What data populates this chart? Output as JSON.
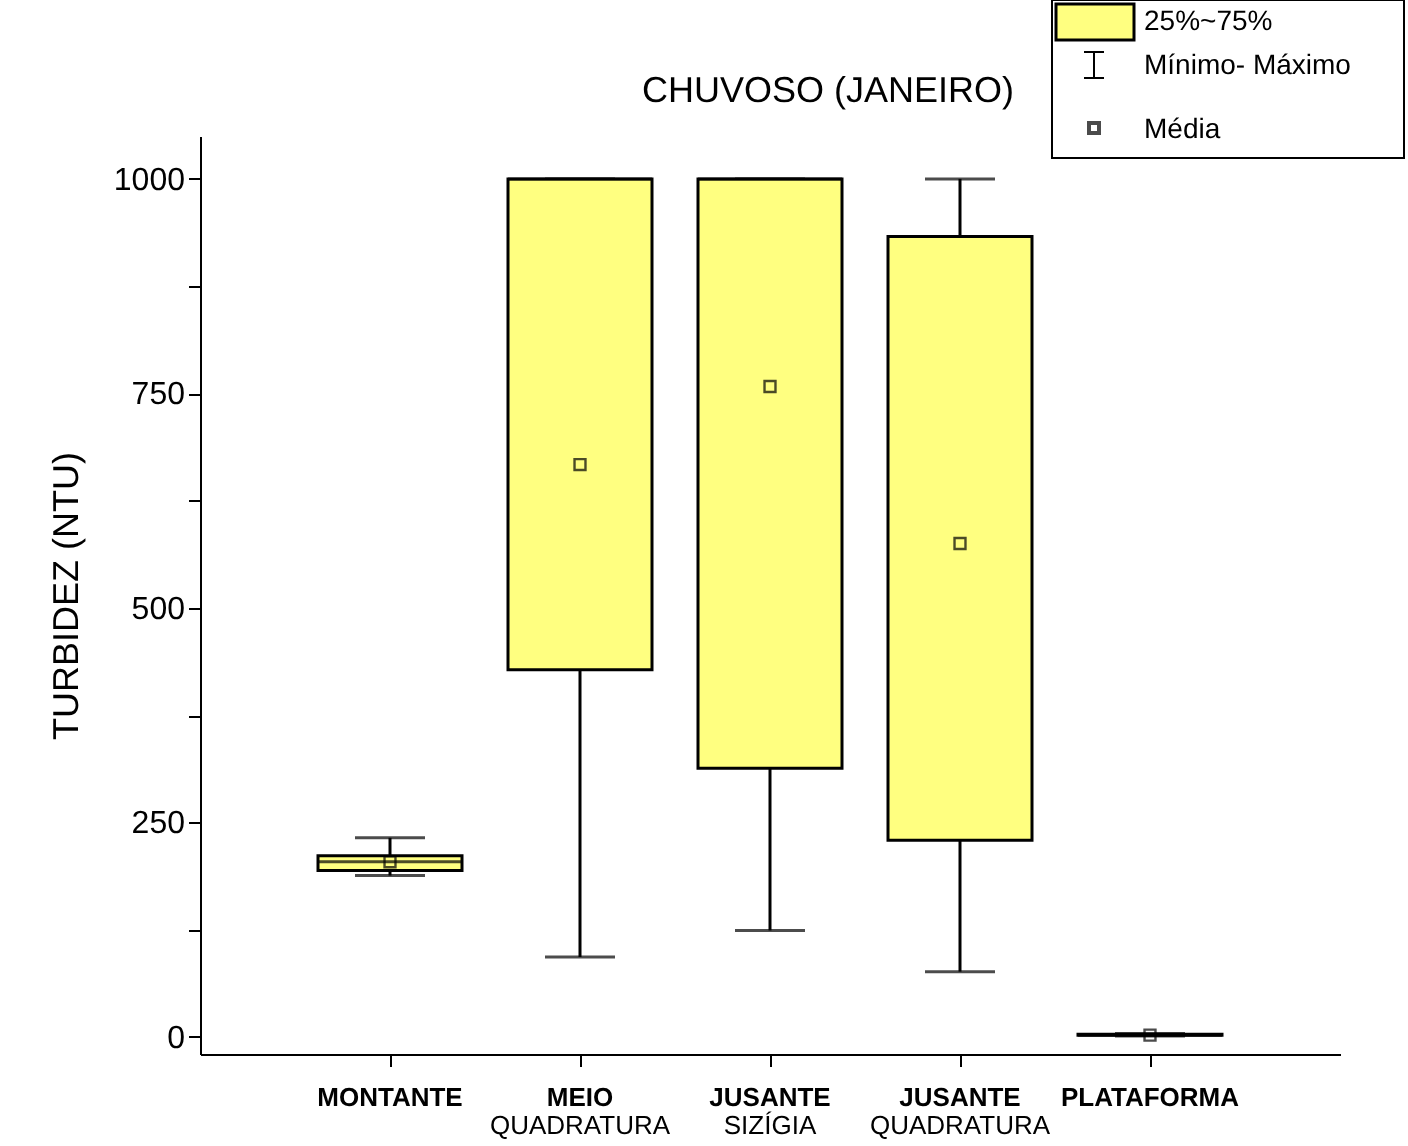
{
  "chart_data": {
    "type": "box",
    "title": "CHUVOSO (JANEIRO)",
    "ylabel": "TURBIDEZ (NTU)",
    "categories": [
      "MONTANTE",
      "MEIO\nQUADRATURA",
      "JUSANTE\nSIZÍGIA",
      "JUSANTE\nQUADRATURA",
      "PLATAFORMA"
    ],
    "series": [
      {
        "name": "25%~75%",
        "color": "#ffff80",
        "boxes": [
          {
            "low": 188,
            "q1": 194,
            "median": 204,
            "q3": 211,
            "high": 232,
            "mean": 204
          },
          {
            "low": 93,
            "q1": 428,
            "median": 1000,
            "q3": 1000,
            "high": 1000,
            "mean": 667
          },
          {
            "low": 124,
            "q1": 313,
            "median": 1000,
            "q3": 1000,
            "high": 1000,
            "mean": 758
          },
          {
            "low": 76,
            "q1": 229,
            "median": 933,
            "q3": 933,
            "high": 1000,
            "mean": 575
          },
          {
            "low": 1,
            "q1": 2,
            "median": 2,
            "q3": 3,
            "high": 4,
            "mean": 2
          }
        ]
      }
    ],
    "annotations": [
      "Mínimo- Máximo",
      "Média"
    ],
    "ylim": [
      -20,
      1050
    ],
    "yticks": [
      0,
      {
        "value": 125,
        "label": null
      },
      250,
      {
        "value": 375,
        "label": null
      },
      500,
      {
        "value": 625,
        "label": null
      },
      750,
      {
        "value": 875,
        "label": null
      },
      1000
    ],
    "grid": false,
    "legend": "top right",
    "marker": "square"
  }
}
